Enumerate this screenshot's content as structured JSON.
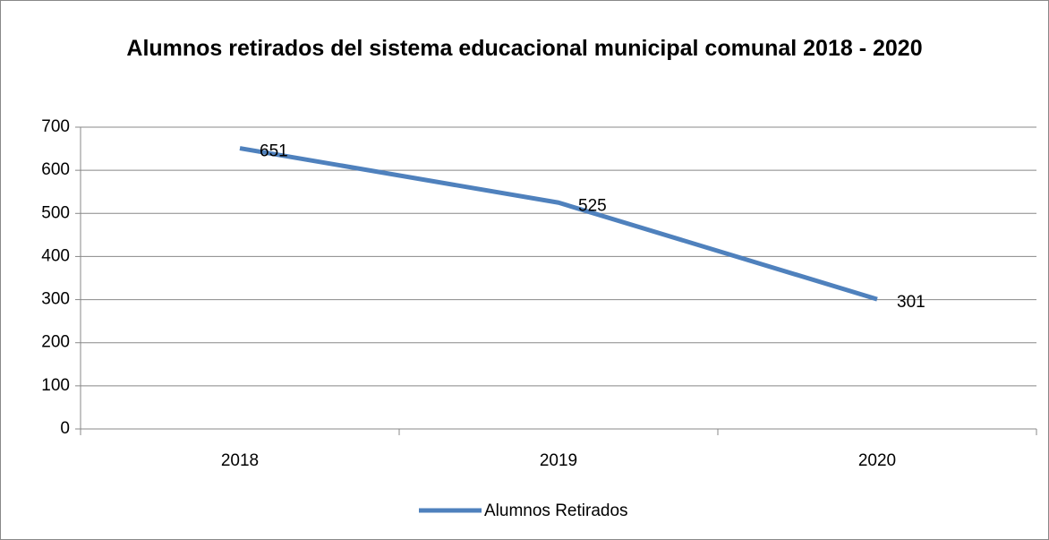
{
  "chart_data": {
    "type": "line",
    "title": "Alumnos retirados del sistema educacional municipal comunal 2018 - 2020",
    "categories": [
      "2018",
      "2019",
      "2020"
    ],
    "series": [
      {
        "name": "Alumnos Retirados",
        "color": "#4f81bd",
        "values": [
          651,
          525,
          301
        ]
      }
    ],
    "ylim": [
      0,
      700
    ],
    "yticks": [
      0,
      100,
      200,
      300,
      400,
      500,
      600,
      700
    ],
    "grid": true,
    "legend": "bottom"
  }
}
